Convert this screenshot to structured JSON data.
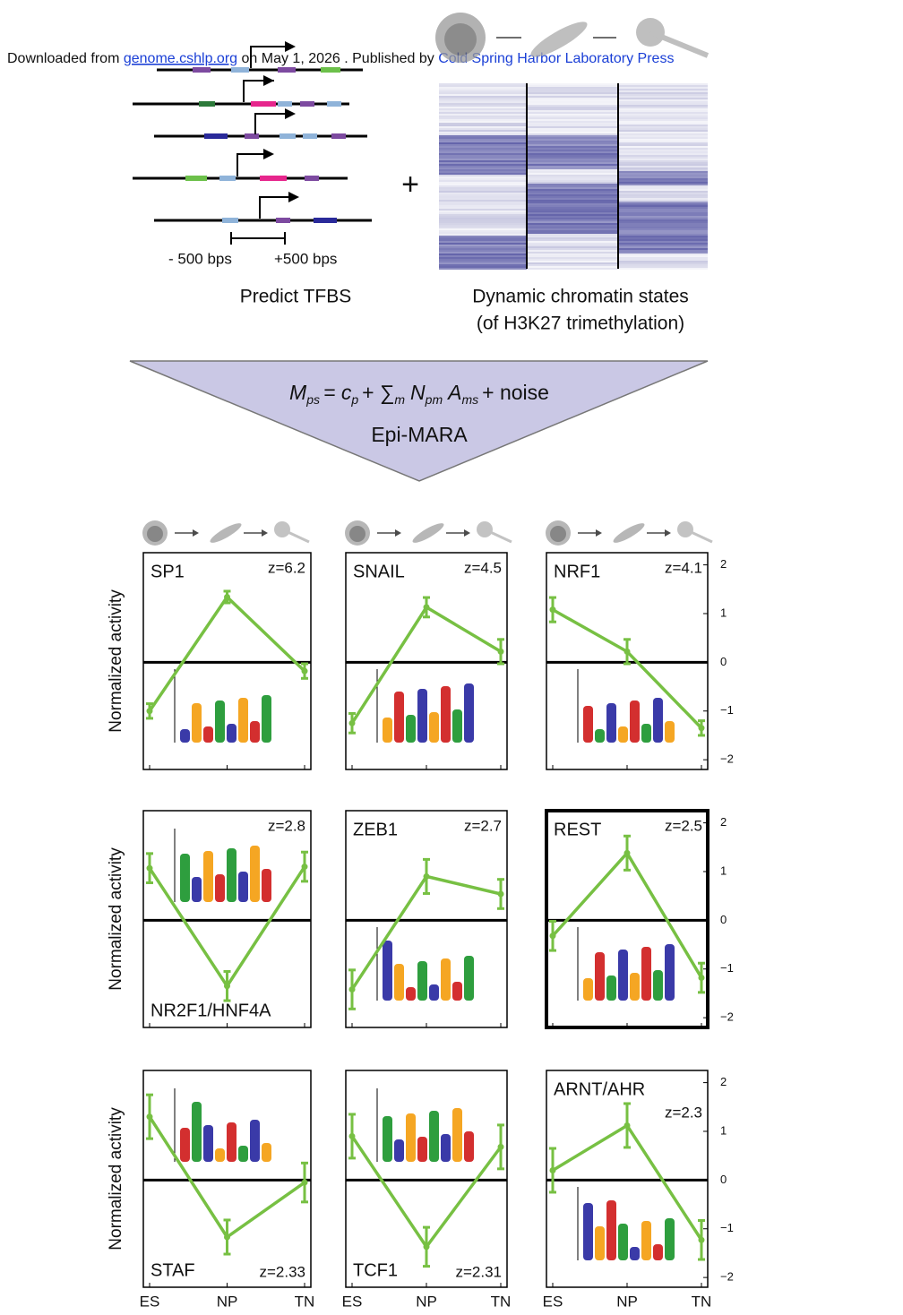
{
  "header": {
    "prefix": "Downloaded from",
    "link1": "genome.cshlp.org",
    "middle": "on May 1, 2026 . Published by",
    "link2": "Cold Spring Harbor Laboratory Press"
  },
  "diagram": {
    "plus": "+",
    "left_range": "- 500 bps",
    "right_range": "+500 bps",
    "tfbs_label": "Predict TFBS",
    "chromatin_label": "Dynamic chromatin states",
    "chromatin_sub": "(of H3K27 trimethylation)",
    "formula": [
      "M",
      "ps",
      "= c",
      "p",
      "+ ∑",
      "m",
      "N",
      "pm",
      "A",
      "ms",
      "+ noise"
    ],
    "model_name": "Epi-MARA"
  },
  "chart_data": [
    {
      "type": "line",
      "title": "SP1",
      "annotation": "z=6.2",
      "ylabel": "Normalized activity",
      "categories": [
        null,
        null,
        null
      ],
      "values": [
        -1.0,
        1.34,
        -0.18
      ],
      "errors": [
        0.15,
        0.12,
        0.15
      ],
      "color": "#77c043",
      "ylim": [
        -2.2,
        2.25
      ]
    },
    {
      "type": "line",
      "title": "SNAIL",
      "annotation": "z=4.5",
      "categories": [
        null,
        null,
        null
      ],
      "values": [
        -1.25,
        1.13,
        0.22
      ],
      "errors": [
        0.2,
        0.2,
        0.25
      ],
      "color": "#77c043",
      "ylim": [
        -2.2,
        2.25
      ]
    },
    {
      "type": "line",
      "title": "NRF1",
      "annotation": "z=4.1",
      "categories": [
        null,
        null,
        null
      ],
      "values": [
        1.08,
        0.22,
        -1.35
      ],
      "errors": [
        0.25,
        0.25,
        0.15
      ],
      "color": "#77c043",
      "ylim": [
        -2.2,
        2.25
      ],
      "yticks": [
        2,
        1,
        0,
        {
          "value": -1,
          "label": "−1"
        },
        {
          "value": -2,
          "label": "−2"
        }
      ]
    },
    {
      "type": "line",
      "title": "NR2F1/HNF4A",
      "annotation": "z=2.8",
      "ylabel": "Normalized activity",
      "categories": [
        null,
        null,
        null
      ],
      "values": [
        1.07,
        -1.35,
        1.1
      ],
      "errors": [
        0.3,
        0.3,
        0.3
      ],
      "color": "#77c043",
      "ylim": [
        -2.2,
        2.25
      ]
    },
    {
      "type": "line",
      "title": "ZEB1",
      "annotation": "z=2.7",
      "categories": [
        null,
        null,
        null
      ],
      "values": [
        -1.42,
        0.9,
        0.54
      ],
      "errors": [
        0.4,
        0.35,
        0.3
      ],
      "color": "#77c043",
      "ylim": [
        -2.2,
        2.25
      ]
    },
    {
      "type": "line",
      "title": "REST",
      "annotation": "z=2.5",
      "categories": [
        null,
        null,
        null
      ],
      "values": [
        -0.32,
        1.38,
        -1.18
      ],
      "errors": [
        0.3,
        0.35,
        0.3
      ],
      "color": "#77c043",
      "ylim": [
        -2.2,
        2.25
      ],
      "yticks": [
        2,
        1,
        0,
        {
          "value": -1,
          "label": "−1"
        },
        {
          "value": -2,
          "label": "−2"
        }
      ]
    },
    {
      "type": "line",
      "title": "STAF",
      "annotation": "z=2.33",
      "ylabel": "Normalized activity",
      "categories": [
        "ES",
        "NP",
        "TN"
      ],
      "values": [
        1.3,
        -1.17,
        -0.05
      ],
      "errors": [
        0.45,
        0.35,
        0.4
      ],
      "color": "#77c043",
      "ylim": [
        -2.2,
        2.25
      ]
    },
    {
      "type": "line",
      "title": "TCF1",
      "annotation": "z=2.31",
      "categories": [
        "ES",
        "NP",
        "TN"
      ],
      "values": [
        0.9,
        -1.37,
        0.68
      ],
      "errors": [
        0.45,
        0.4,
        0.45
      ],
      "color": "#77c043",
      "ylim": [
        -2.2,
        2.25
      ]
    },
    {
      "type": "line",
      "title": "ARNT/AHR",
      "annotation": "z=2.3",
      "categories": [
        "ES",
        "NP",
        "TN"
      ],
      "values": [
        0.2,
        1.12,
        -1.23
      ],
      "errors": [
        0.45,
        0.45,
        0.4
      ],
      "color": "#77c043",
      "ylim": [
        -2.2,
        2.25
      ],
      "yticks": [
        2,
        1,
        0,
        {
          "value": -1,
          "label": "−1"
        },
        {
          "value": -2,
          "label": "−2"
        }
      ]
    }
  ]
}
